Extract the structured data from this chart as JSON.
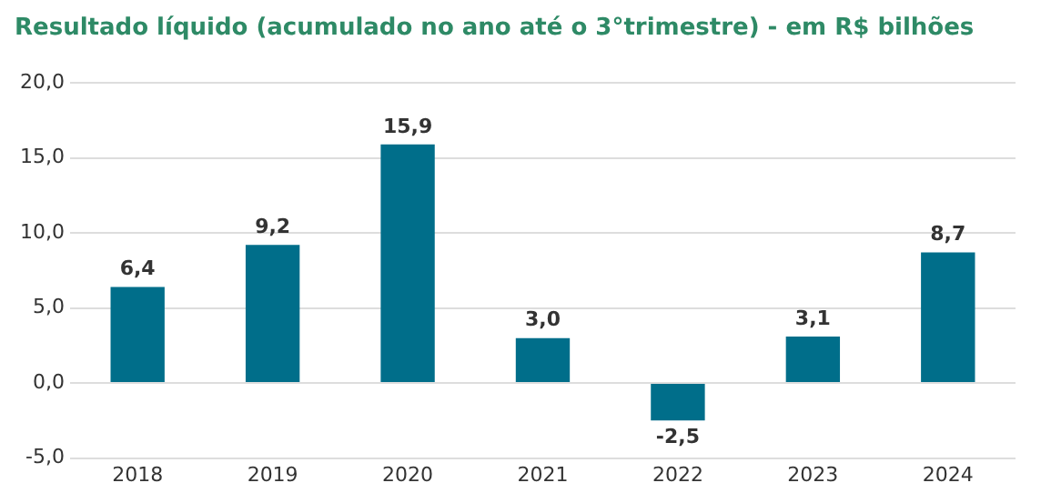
{
  "chart_data": {
    "type": "bar",
    "title": "Resultado líquido (acumulado no ano até o 3°trimestre) - em R$ bilhões",
    "categories": [
      "2018",
      "2019",
      "2020",
      "2021",
      "2022",
      "2023",
      "2024"
    ],
    "values": [
      6.4,
      9.2,
      15.9,
      3.0,
      -2.5,
      3.1,
      8.7
    ],
    "color": "#006e8a",
    "value_labels": [
      "6,4",
      "9,2",
      "15,9",
      "3,0",
      "-2,5",
      "3,1",
      "8,7"
    ],
    "ylim": [
      -5,
      20
    ],
    "yticks": [
      {
        "value": -5,
        "label": "-5,0"
      },
      {
        "value": 0,
        "label": "0,0"
      },
      {
        "value": 5,
        "label": "5,0"
      },
      {
        "value": 10,
        "label": "10,0"
      },
      {
        "value": 15,
        "label": "15,0"
      },
      {
        "value": 20,
        "label": "20,0"
      }
    ],
    "grid": "y"
  }
}
